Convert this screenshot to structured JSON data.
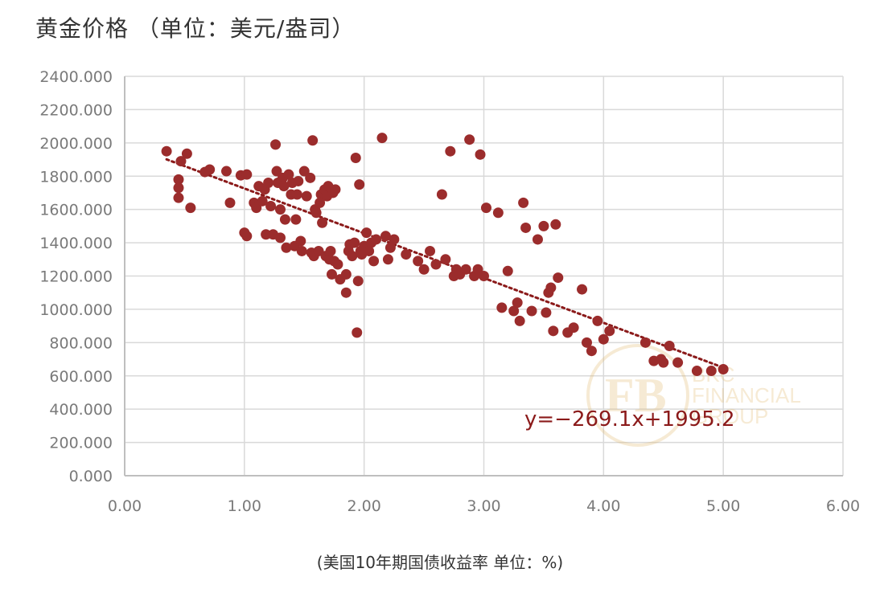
{
  "chart_data": {
    "type": "scatter",
    "title": "黄金价格 （单位：美元/盎司）",
    "xlabel": "(美国10年期国债收益率 单位：%)",
    "ylabel": "",
    "xlim": [
      0,
      6
    ],
    "ylim": [
      0,
      2400
    ],
    "x_ticks": [
      "0.00",
      "1.00",
      "2.00",
      "3.00",
      "4.00",
      "5.00",
      "6.00"
    ],
    "y_ticks": [
      "0.000",
      "200.000",
      "400.000",
      "600.000",
      "800.000",
      "1000.000",
      "1200.000",
      "1400.000",
      "1600.000",
      "1800.000",
      "2000.000",
      "2200.000",
      "2400.000"
    ],
    "grid": true,
    "trendline": {
      "label": "y=−269.1x+1995.2",
      "slope": -269.1,
      "intercept": 1995.2,
      "x_range": [
        0.35,
        5.0
      ],
      "style": "dotted"
    },
    "colors": {
      "points": "#9b2c2c",
      "trend": "#8b1a1a",
      "grid": "#d9d9d9",
      "axis": "#bfbfbf"
    },
    "points": [
      [
        0.35,
        1950
      ],
      [
        0.47,
        1890
      ],
      [
        0.52,
        1935
      ],
      [
        0.45,
        1780
      ],
      [
        0.45,
        1730
      ],
      [
        0.45,
        1670
      ],
      [
        0.55,
        1610
      ],
      [
        0.67,
        1825
      ],
      [
        0.71,
        1840
      ],
      [
        0.85,
        1830
      ],
      [
        0.88,
        1640
      ],
      [
        0.97,
        1805
      ],
      [
        1.02,
        1810
      ],
      [
        1.0,
        1460
      ],
      [
        1.02,
        1440
      ],
      [
        1.08,
        1640
      ],
      [
        1.1,
        1610
      ],
      [
        1.12,
        1740
      ],
      [
        1.15,
        1650
      ],
      [
        1.17,
        1720
      ],
      [
        1.18,
        1450
      ],
      [
        1.2,
        1760
      ],
      [
        1.22,
        1620
      ],
      [
        1.24,
        1450
      ],
      [
        1.26,
        1990
      ],
      [
        1.27,
        1830
      ],
      [
        1.28,
        1760
      ],
      [
        1.3,
        1600
      ],
      [
        1.3,
        1430
      ],
      [
        1.32,
        1790
      ],
      [
        1.33,
        1740
      ],
      [
        1.34,
        1540
      ],
      [
        1.35,
        1370
      ],
      [
        1.37,
        1810
      ],
      [
        1.39,
        1690
      ],
      [
        1.4,
        1760
      ],
      [
        1.42,
        1380
      ],
      [
        1.43,
        1540
      ],
      [
        1.44,
        1690
      ],
      [
        1.45,
        1770
      ],
      [
        1.47,
        1410
      ],
      [
        1.48,
        1350
      ],
      [
        1.5,
        1830
      ],
      [
        1.52,
        1680
      ],
      [
        1.55,
        1790
      ],
      [
        1.56,
        1340
      ],
      [
        1.57,
        2015
      ],
      [
        1.58,
        1320
      ],
      [
        1.59,
        1600
      ],
      [
        1.6,
        1580
      ],
      [
        1.62,
        1350
      ],
      [
        1.63,
        1640
      ],
      [
        1.64,
        1690
      ],
      [
        1.65,
        1520
      ],
      [
        1.66,
        1700
      ],
      [
        1.67,
        1720
      ],
      [
        1.68,
        1320
      ],
      [
        1.69,
        1680
      ],
      [
        1.7,
        1740
      ],
      [
        1.71,
        1300
      ],
      [
        1.72,
        1350
      ],
      [
        1.73,
        1210
      ],
      [
        1.74,
        1700
      ],
      [
        1.75,
        1290
      ],
      [
        1.76,
        1720
      ],
      [
        1.78,
        1270
      ],
      [
        1.8,
        1180
      ],
      [
        1.85,
        1210
      ],
      [
        1.85,
        1100
      ],
      [
        1.87,
        1350
      ],
      [
        1.88,
        1390
      ],
      [
        1.9,
        1320
      ],
      [
        1.92,
        1400
      ],
      [
        1.93,
        1910
      ],
      [
        1.94,
        860
      ],
      [
        1.95,
        1170
      ],
      [
        1.96,
        1750
      ],
      [
        1.97,
        1350
      ],
      [
        1.98,
        1330
      ],
      [
        2.0,
        1380
      ],
      [
        2.02,
        1460
      ],
      [
        2.04,
        1350
      ],
      [
        2.06,
        1400
      ],
      [
        2.08,
        1290
      ],
      [
        2.1,
        1420
      ],
      [
        2.15,
        2030
      ],
      [
        2.18,
        1440
      ],
      [
        2.2,
        1300
      ],
      [
        2.22,
        1370
      ],
      [
        2.25,
        1420
      ],
      [
        2.35,
        1330
      ],
      [
        2.45,
        1290
      ],
      [
        2.5,
        1240
      ],
      [
        2.55,
        1350
      ],
      [
        2.6,
        1270
      ],
      [
        2.65,
        1690
      ],
      [
        2.68,
        1300
      ],
      [
        2.72,
        1950
      ],
      [
        2.75,
        1200
      ],
      [
        2.77,
        1240
      ],
      [
        2.8,
        1210
      ],
      [
        2.85,
        1240
      ],
      [
        2.88,
        2020
      ],
      [
        2.92,
        1200
      ],
      [
        2.95,
        1240
      ],
      [
        2.97,
        1930
      ],
      [
        3.0,
        1200
      ],
      [
        3.02,
        1610
      ],
      [
        3.12,
        1580
      ],
      [
        3.15,
        1010
      ],
      [
        3.2,
        1230
      ],
      [
        3.25,
        990
      ],
      [
        3.28,
        1040
      ],
      [
        3.3,
        930
      ],
      [
        3.33,
        1640
      ],
      [
        3.35,
        1490
      ],
      [
        3.4,
        990
      ],
      [
        3.45,
        1420
      ],
      [
        3.5,
        1500
      ],
      [
        3.52,
        980
      ],
      [
        3.54,
        1100
      ],
      [
        3.56,
        1130
      ],
      [
        3.58,
        870
      ],
      [
        3.6,
        1510
      ],
      [
        3.62,
        1190
      ],
      [
        3.7,
        860
      ],
      [
        3.75,
        890
      ],
      [
        3.82,
        1120
      ],
      [
        3.86,
        800
      ],
      [
        3.9,
        750
      ],
      [
        3.95,
        930
      ],
      [
        4.0,
        820
      ],
      [
        4.05,
        870
      ],
      [
        4.35,
        800
      ],
      [
        4.42,
        690
      ],
      [
        4.48,
        700
      ],
      [
        4.5,
        680
      ],
      [
        4.55,
        780
      ],
      [
        4.62,
        680
      ],
      [
        4.78,
        630
      ],
      [
        4.9,
        630
      ],
      [
        5.0,
        640
      ]
    ]
  }
}
